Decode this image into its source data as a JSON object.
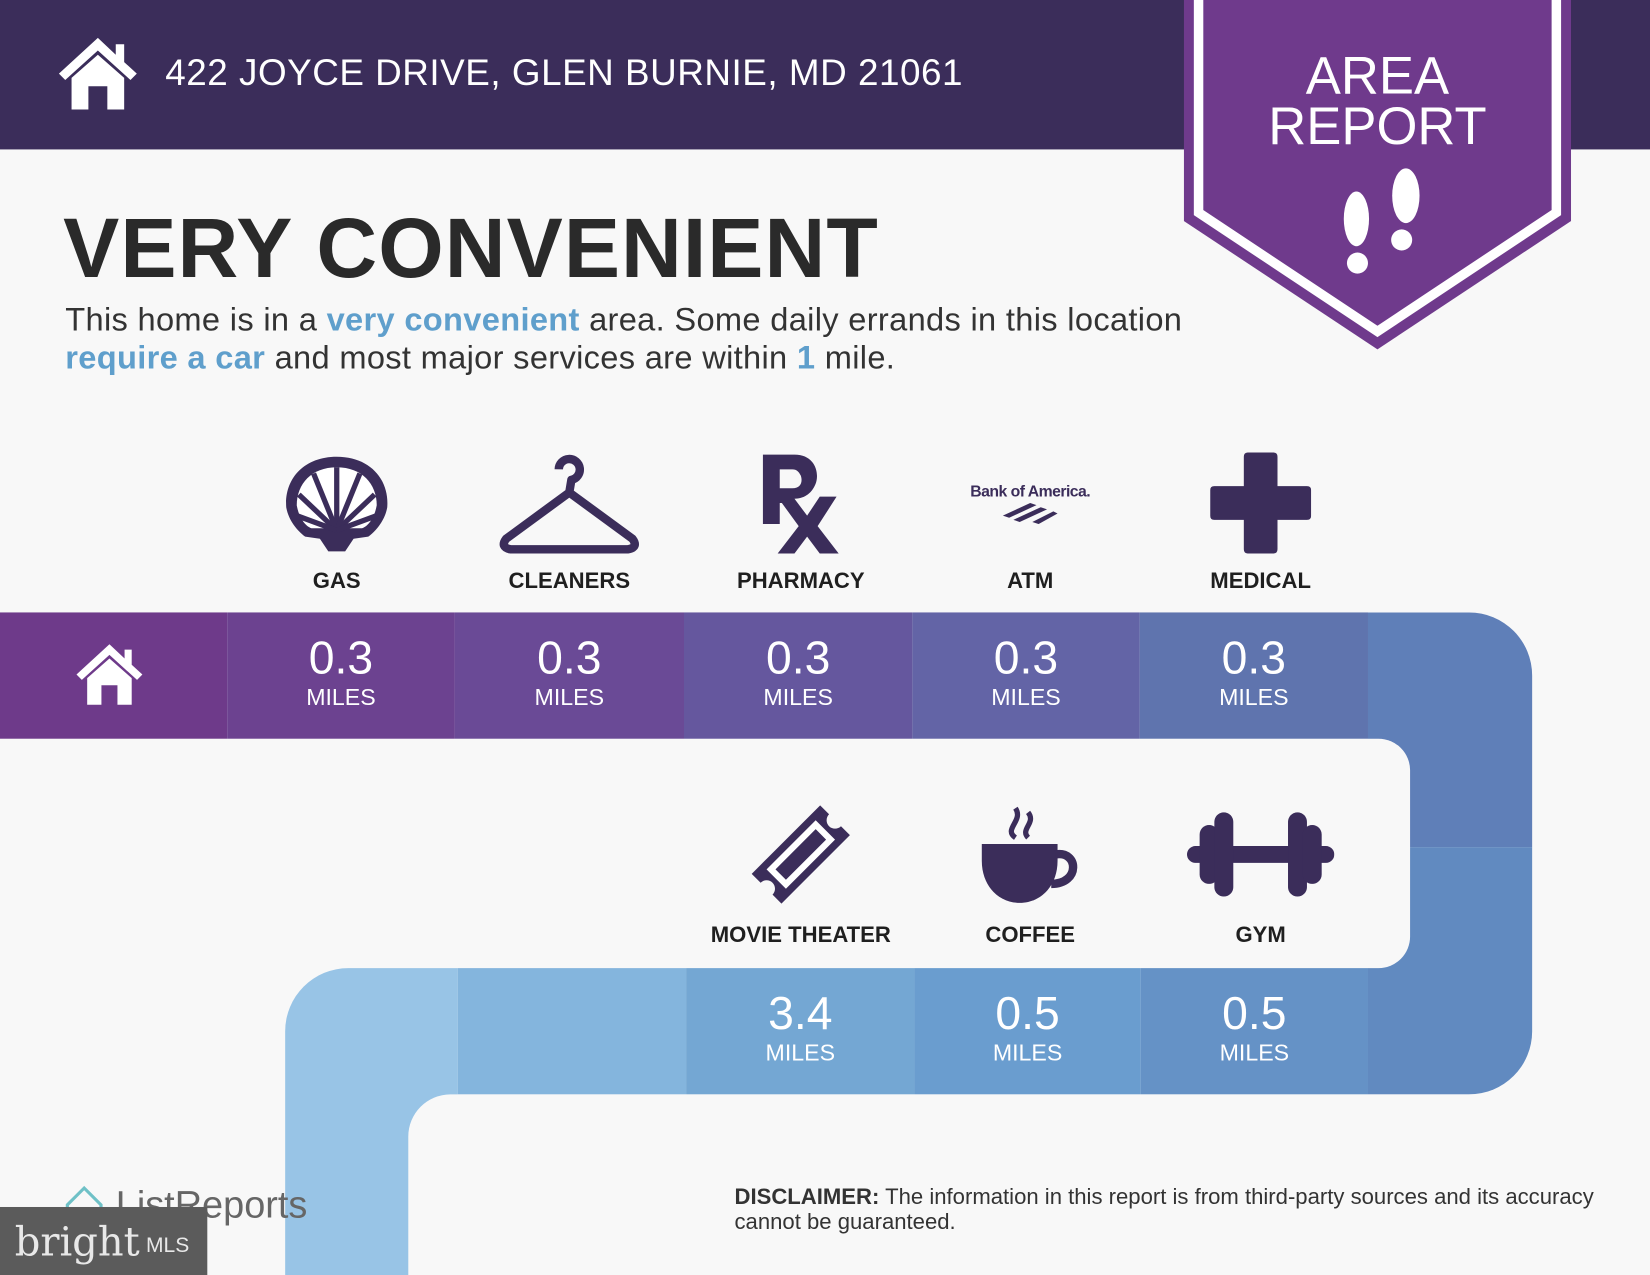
{
  "header": {
    "address": "422 JOYCE DRIVE, GLEN BURNIE, MD 21061",
    "home_icon": "house-icon"
  },
  "badge": {
    "line1": "AREA",
    "line2": "REPORT",
    "icon": "footprints-icon"
  },
  "rating": {
    "title": "VERY CONVENIENT"
  },
  "summary": {
    "t1": "This home is in a ",
    "h1": "very convenient",
    "t2": " area. Some daily errands in this location ",
    "h2": "require a car",
    "t3": " and most major services are within ",
    "h3": "1",
    "t4": " mile."
  },
  "row1": [
    {
      "label": "GAS",
      "icon": "shell-icon",
      "distance": "0.3",
      "unit": "MILES"
    },
    {
      "label": "CLEANERS",
      "icon": "hanger-icon",
      "distance": "0.3",
      "unit": "MILES"
    },
    {
      "label": "PHARMACY",
      "icon": "rx-icon",
      "distance": "0.3",
      "unit": "MILES"
    },
    {
      "label": "ATM",
      "icon": "bank-of-america-logo",
      "logo_text": "Bank of America.",
      "distance": "0.3",
      "unit": "MILES"
    },
    {
      "label": "MEDICAL",
      "icon": "medical-cross-icon",
      "distance": "0.3",
      "unit": "MILES"
    }
  ],
  "row2": [
    {
      "label": "MOVIE THEATER",
      "icon": "ticket-icon",
      "distance": "3.4",
      "unit": "MILES"
    },
    {
      "label": "COFFEE",
      "icon": "coffee-cup-icon",
      "distance": "0.5",
      "unit": "MILES"
    },
    {
      "label": "GYM",
      "icon": "dumbbell-icon",
      "distance": "0.5",
      "unit": "MILES"
    }
  ],
  "disclaimer": {
    "label": "DISCLAIMER:",
    "text": " The information in this report is from third-party sources and its accuracy cannot be guaranteed."
  },
  "branding": {
    "listreports": "ListReports",
    "bright": "bright",
    "mls": "MLS"
  },
  "colors": {
    "header": "#3b2d5a",
    "badge": "#6f3a8c",
    "highlight": "#5f9fcc",
    "icon": "#3b2d5a"
  }
}
